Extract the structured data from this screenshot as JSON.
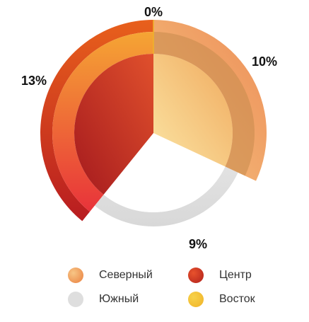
{
  "chart_data": {
    "type": "pie",
    "categories": [
      "Северный",
      "Южный",
      "Центр",
      "Восток"
    ],
    "values": [
      10,
      9,
      13,
      0
    ],
    "labels": [
      "10%",
      "9%",
      "13%",
      "0%"
    ],
    "colors": {
      "Северный": [
        "#f8dc98",
        "#ec7e3c"
      ],
      "Южный": [
        "#dedede",
        "#dedede"
      ],
      "Центр": [
        "#a81c1e",
        "#e2412a"
      ],
      "Восток": [
        "#f0c23a",
        "#f7ad2c"
      ]
    },
    "legend_position": "bottom"
  }
}
